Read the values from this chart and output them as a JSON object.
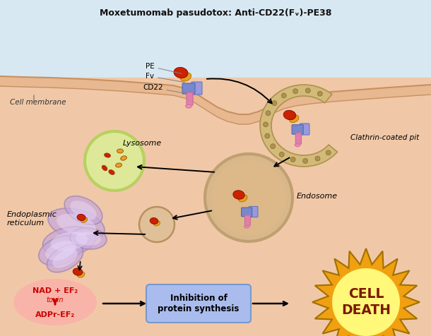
{
  "title": "Moxetumomab pasudotox: Anti-CD22(Fᵥ)-PE38",
  "bg_top_color": "#d8e8f2",
  "bg_bottom_color": "#f2c8b4",
  "labels": {
    "cell_membrane": "Cell membrane",
    "lysosome": "Lysosome",
    "endosome": "Endosome",
    "clathrin_pit": "Clathrin-coated pit",
    "er": "Endoplasmic\nreticulum",
    "pe": "PE",
    "fv": "Fv",
    "cd22": "CD22",
    "nad": "NAD + EF₂",
    "toxin": "toxin",
    "adpr": "ADPr-EF₂",
    "inhibition": "Inhibition of\nprotein synthesis",
    "cell_death": "CELL\nDEATH"
  },
  "colors": {
    "red_blob": "#cc2200",
    "yellow_blob": "#e8a020",
    "blue_receptor1": "#7788cc",
    "blue_receptor2": "#9999dd",
    "pink_stem": "#e080aa",
    "lysosome_green": "#b8d060",
    "lysosome_interior": "#dde898",
    "endosome_tan": "#c0a070",
    "endosome_interior": "#d8b88a",
    "er_purple": "#c8a8d8",
    "er_outline": "#a088b8",
    "clathrin_tan": "#d0b878",
    "clathrin_dots": "#b09050",
    "nad_bg": "#ff9090",
    "inhibition_bg": "#aabcee",
    "inhibition_border": "#7799cc",
    "cell_death_outer": "#f0a010",
    "cell_death_inner": "#fff878",
    "arrow_color": "#111111",
    "red_arrow": "#cc1100",
    "text_dark": "#111111",
    "text_red": "#cc0000"
  },
  "layout": {
    "figsize": [
      6.1,
      4.76
    ],
    "dpi": 100
  }
}
